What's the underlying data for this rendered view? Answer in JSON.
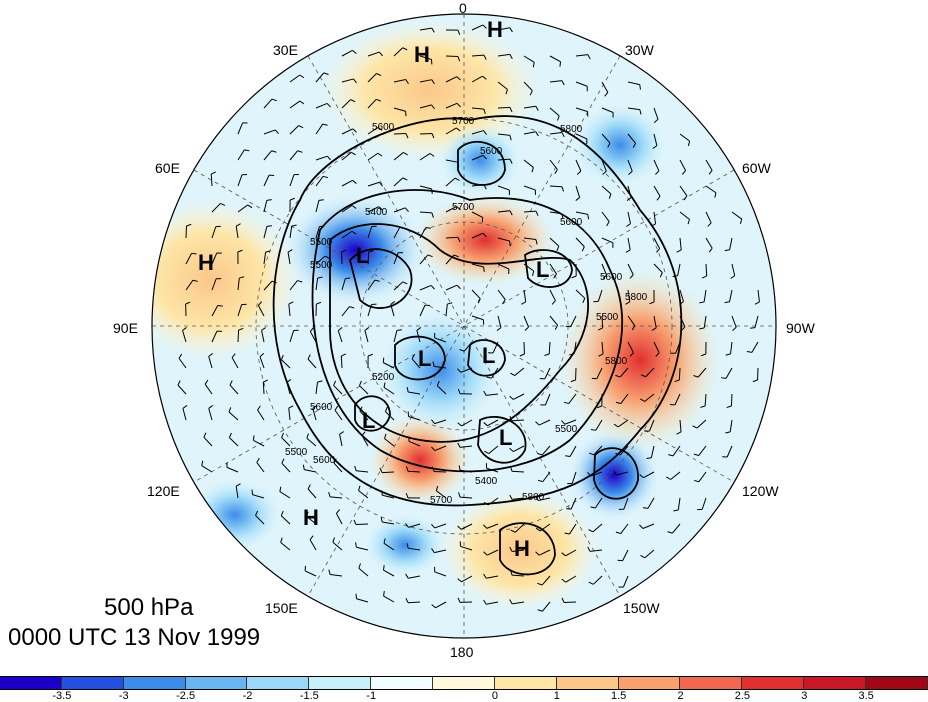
{
  "map": {
    "title_level": "500 hPa",
    "title_time": "0000 UTC 13 Nov 1999",
    "longitude_labels": {
      "top": "0",
      "top_left": "30E",
      "top_right": "30W",
      "upper_left": "60E",
      "upper_right": "60W",
      "left": "90E",
      "right": "90W",
      "lower_left": "120E",
      "lower_right": "120W",
      "bottom_left": "150E",
      "bottom_right": "150W",
      "bottom": "180"
    },
    "contour_labels": [
      "5700",
      "5600",
      "5800",
      "5700",
      "5600",
      "5500",
      "5400",
      "5500",
      "5200",
      "5600",
      "5600",
      "5800",
      "5600",
      "5500",
      "5400",
      "5700",
      "5800",
      "5600",
      "5500",
      "5500",
      "5800"
    ],
    "pressure_centers": [
      {
        "type": "H"
      },
      {
        "type": "H"
      },
      {
        "type": "H"
      },
      {
        "type": "H"
      },
      {
        "type": "H"
      },
      {
        "type": "L"
      },
      {
        "type": "L"
      },
      {
        "type": "L"
      },
      {
        "type": "L"
      },
      {
        "type": "L"
      },
      {
        "type": "L"
      }
    ]
  },
  "colorbar": {
    "colors": [
      "#1d00c8",
      "#2450e0",
      "#3d8de8",
      "#6ab4f0",
      "#9bd8f8",
      "#c8f0fc",
      "#f0fcff",
      "#fff8dc",
      "#fde6a8",
      "#fbc88a",
      "#f8a070",
      "#f06850",
      "#e03030",
      "#c81828",
      "#a00818"
    ],
    "tick_labels": [
      "-3.5",
      "-3",
      "-2.5",
      "-2",
      "-1.5",
      "-1",
      "0",
      "1",
      "1.5",
      "2",
      "2.5",
      "3",
      "3.5"
    ]
  }
}
